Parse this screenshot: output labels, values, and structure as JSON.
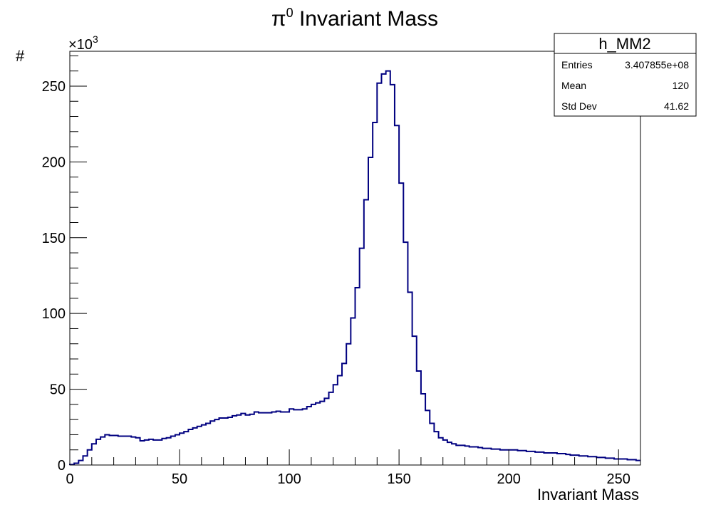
{
  "chart_data": {
    "type": "histogram",
    "title_symbol": "π",
    "title_superscript": "0",
    "title_rest": " Invariant Mass",
    "xlabel": "Invariant Mass",
    "ylabel": "#",
    "y_exponent_base": "×10",
    "y_exponent_power": "3",
    "xlim": [
      0,
      260
    ],
    "ylim": [
      0,
      273
    ],
    "xticks": [
      0,
      50,
      100,
      150,
      200,
      250
    ],
    "yticks": [
      0,
      50,
      100,
      150,
      200,
      250
    ],
    "bin_width": 2,
    "bin_start": 0,
    "line_color": "#000080",
    "values": [
      0.3,
      1.2,
      3,
      6,
      10,
      14,
      17,
      18.5,
      20,
      19.5,
      19.5,
      19,
      19,
      19,
      18.5,
      18,
      16,
      16.5,
      17,
      16.5,
      16.5,
      17.5,
      18,
      19,
      20,
      21,
      22,
      23.5,
      24.5,
      25.5,
      26.5,
      27.5,
      29,
      30,
      31,
      31,
      31.5,
      32.5,
      33,
      34,
      33,
      33.5,
      35,
      34.5,
      34.5,
      34.5,
      35,
      35.5,
      35,
      35,
      37,
      36.5,
      36.5,
      37,
      38.5,
      40,
      41,
      42,
      44,
      48,
      53,
      59,
      67,
      80,
      97,
      117,
      143,
      175,
      203,
      226,
      252,
      258,
      260,
      251,
      224,
      186,
      147,
      114,
      85,
      62,
      47,
      36,
      27.5,
      22,
      18,
      16.5,
      15,
      14,
      13,
      13,
      12.5,
      12,
      12,
      11.5,
      11,
      11,
      10.5,
      10.5,
      10,
      10,
      10,
      10,
      9.5,
      9.5,
      9,
      9,
      8.5,
      8.5,
      8,
      8,
      8,
      7.5,
      7.5,
      7,
      6.5,
      6.5,
      6,
      6,
      5.5,
      5.5,
      5,
      5,
      4.5,
      4.5,
      4,
      4,
      4,
      3.5,
      3.5,
      3
    ]
  },
  "stats_box": {
    "name": "h_MM2",
    "entries_label": "Entries",
    "entries_value": "3.407855e+08",
    "mean_label": "Mean",
    "mean_value": "120",
    "stddev_label": "Std Dev",
    "stddev_value": "41.62"
  }
}
